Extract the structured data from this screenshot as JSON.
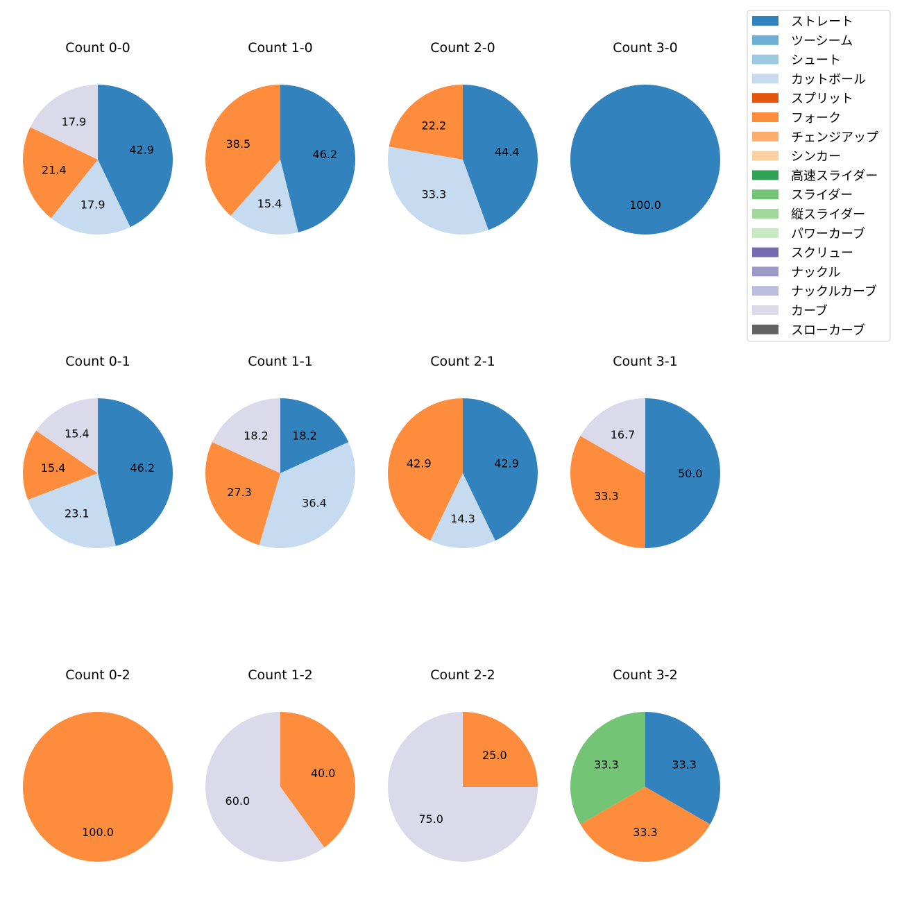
{
  "chart_data": {
    "type": "pie",
    "pitch_types": [
      {
        "name": "ストレート",
        "color": "#3182bd"
      },
      {
        "name": "ツーシーム",
        "color": "#6baed6"
      },
      {
        "name": "シュート",
        "color": "#9ecae1"
      },
      {
        "name": "カットボール",
        "color": "#c6dbef"
      },
      {
        "name": "スプリット",
        "color": "#e6550d"
      },
      {
        "name": "フォーク",
        "color": "#fd8d3c"
      },
      {
        "name": "チェンジアップ",
        "color": "#fdae6b"
      },
      {
        "name": "シンカー",
        "color": "#fdd0a2"
      },
      {
        "name": "高速スライダー",
        "color": "#31a354"
      },
      {
        "name": "スライダー",
        "color": "#74c476"
      },
      {
        "name": "縦スライダー",
        "color": "#a1d99b"
      },
      {
        "name": "パワーカーブ",
        "color": "#c7e9c0"
      },
      {
        "name": "スクリュー",
        "color": "#756bb1"
      },
      {
        "name": "ナックル",
        "color": "#9e9ac8"
      },
      {
        "name": "ナックルカーブ",
        "color": "#bcbddc"
      },
      {
        "name": "カーブ",
        "color": "#dadaeb"
      },
      {
        "name": "スローカーブ",
        "color": "#636363"
      }
    ],
    "charts": [
      {
        "title": "Count 0-0",
        "slices": [
          {
            "type": "ストレート",
            "value": 42.9
          },
          {
            "type": "カットボール",
            "value": 17.9
          },
          {
            "type": "フォーク",
            "value": 21.4
          },
          {
            "type": "カーブ",
            "value": 17.9
          }
        ]
      },
      {
        "title": "Count 1-0",
        "slices": [
          {
            "type": "ストレート",
            "value": 46.2
          },
          {
            "type": "カットボール",
            "value": 15.4
          },
          {
            "type": "フォーク",
            "value": 38.5
          }
        ]
      },
      {
        "title": "Count 2-0",
        "slices": [
          {
            "type": "ストレート",
            "value": 44.4
          },
          {
            "type": "カットボール",
            "value": 33.3
          },
          {
            "type": "フォーク",
            "value": 22.2
          }
        ]
      },
      {
        "title": "Count 3-0",
        "slices": [
          {
            "type": "ストレート",
            "value": 100.0
          }
        ]
      },
      {
        "title": "Count 0-1",
        "slices": [
          {
            "type": "ストレート",
            "value": 46.2
          },
          {
            "type": "カットボール",
            "value": 23.1
          },
          {
            "type": "フォーク",
            "value": 15.4
          },
          {
            "type": "カーブ",
            "value": 15.4
          }
        ]
      },
      {
        "title": "Count 1-1",
        "slices": [
          {
            "type": "ストレート",
            "value": 18.2
          },
          {
            "type": "カットボール",
            "value": 36.4
          },
          {
            "type": "フォーク",
            "value": 27.3
          },
          {
            "type": "カーブ",
            "value": 18.2
          }
        ]
      },
      {
        "title": "Count 2-1",
        "slices": [
          {
            "type": "ストレート",
            "value": 42.9
          },
          {
            "type": "カットボール",
            "value": 14.3
          },
          {
            "type": "フォーク",
            "value": 42.9
          }
        ]
      },
      {
        "title": "Count 3-1",
        "slices": [
          {
            "type": "ストレート",
            "value": 50.0
          },
          {
            "type": "フォーク",
            "value": 33.3
          },
          {
            "type": "カーブ",
            "value": 16.7
          }
        ]
      },
      {
        "title": "Count 0-2",
        "slices": [
          {
            "type": "フォーク",
            "value": 100.0
          }
        ]
      },
      {
        "title": "Count 1-2",
        "slices": [
          {
            "type": "フォーク",
            "value": 40.0
          },
          {
            "type": "カーブ",
            "value": 60.0
          }
        ]
      },
      {
        "title": "Count 2-2",
        "slices": [
          {
            "type": "フォーク",
            "value": 25.0
          },
          {
            "type": "カーブ",
            "value": 75.0
          }
        ]
      },
      {
        "title": "Count 3-2",
        "slices": [
          {
            "type": "ストレート",
            "value": 33.3
          },
          {
            "type": "フォーク",
            "value": 33.3
          },
          {
            "type": "スライダー",
            "value": 33.3
          }
        ]
      }
    ],
    "legend_placement": "top-right"
  }
}
